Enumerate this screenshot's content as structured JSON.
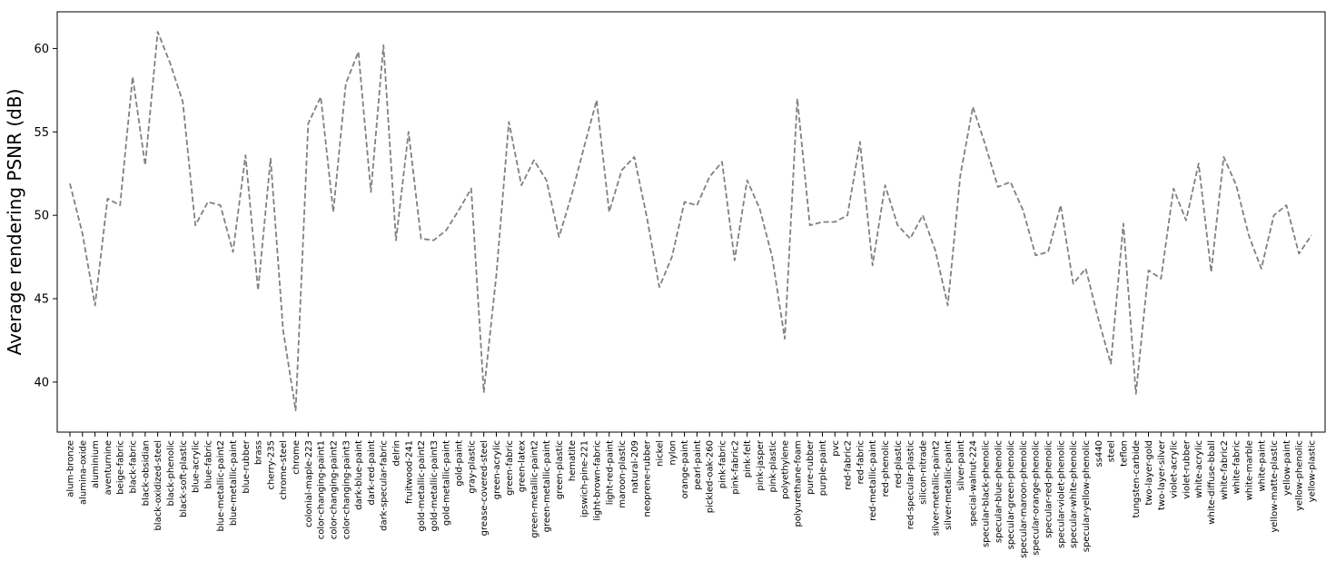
{
  "chart_data": {
    "type": "line",
    "title": "",
    "xlabel": "",
    "ylabel": "Average rendering PSNR (dB)",
    "ylim": [
      37.0,
      62.2
    ],
    "yticks": [
      40,
      45,
      50,
      55,
      60
    ],
    "grid": false,
    "legend": "none",
    "line_color": "#808080",
    "line_style": "dashed",
    "categories": [
      "alum-bronze",
      "alumina-oxide",
      "aluminium",
      "aventurnine",
      "beige-fabric",
      "black-fabric",
      "black-obsidian",
      "black-oxidized-steel",
      "black-phenolic",
      "black-soft-plastic",
      "blue-acrylic",
      "blue-fabric",
      "blue-metallic-paint2",
      "blue-metallic-paint",
      "blue-rubber",
      "brass",
      "cherry-235",
      "chrome-steel",
      "chrome",
      "colonial-maple-223",
      "color-changing-paint1",
      "color-changing-paint2",
      "color-changing-paint3",
      "dark-blue-paint",
      "dark-red-paint",
      "dark-specular-fabric",
      "delrin",
      "fruitwood-241",
      "gold-metallic-paint2",
      "gold-metallic-paint3",
      "gold-metallic-paint",
      "gold-paint",
      "gray-plastic",
      "grease-covered-steel",
      "green-acrylic",
      "green-fabric",
      "green-latex",
      "green-metallic-paint2",
      "green-metallic-paint",
      "green-plastic",
      "hematite",
      "ipswich-pine-221",
      "light-brown-fabric",
      "light-red-paint",
      "maroon-plastic",
      "natural-209",
      "neoprene-rubber",
      "nickel",
      "nylon",
      "orange-paint",
      "pearl-paint",
      "pickled-oak-260",
      "pink-fabric",
      "pink-fabric2",
      "pink-felt",
      "pink-jasper",
      "pink-plastic",
      "polyethylene",
      "polyurethane-foam",
      "pure-rubber",
      "purple-paint",
      "pvc",
      "red-fabric2",
      "red-fabric",
      "red-metallic-paint",
      "red-phenolic",
      "red-plastic",
      "red-specular-plastic",
      "silicon-nitrade",
      "silver-metallic-paint2",
      "silver-metallic-paint",
      "silver-paint",
      "special-walnut-224",
      "specular-black-phenolic",
      "specular-blue-phenolic",
      "specular-green-phenolic",
      "specular-maroon-phenolic",
      "specular-orange-phenolic",
      "specular-red-phenolic",
      "specular-violet-phenolic",
      "specular-white-phenolic",
      "specular-yellow-phenolic",
      "ss440",
      "steel",
      "teflon",
      "tungsten-carbide",
      "two-layer-gold",
      "two-layer-silver",
      "violet-acrylic",
      "violet-rubber",
      "white-acrylic",
      "white-diffuse-bball",
      "white-fabric2",
      "white-fabric",
      "white-marble",
      "white-paint",
      "yellow-matte-plastic",
      "yellow-paint",
      "yellow-phenolic",
      "yellow-plastic"
    ],
    "values": [
      51.9,
      48.9,
      44.6,
      51.0,
      50.6,
      58.3,
      53.0,
      61.0,
      59.1,
      56.8,
      49.4,
      50.8,
      50.6,
      47.8,
      53.6,
      45.5,
      53.4,
      43.1,
      38.3,
      55.5,
      57.1,
      50.2,
      57.9,
      59.8,
      51.4,
      60.2,
      48.5,
      55.0,
      48.6,
      48.5,
      49.1,
      50.3,
      51.6,
      39.4,
      46.4,
      55.6,
      51.8,
      53.3,
      52.1,
      48.7,
      51.2,
      54.1,
      56.9,
      50.2,
      52.7,
      53.5,
      49.9,
      45.7,
      47.5,
      50.8,
      50.6,
      52.3,
      53.2,
      47.3,
      52.1,
      50.4,
      47.5,
      42.6,
      57.0,
      49.4,
      49.6,
      49.6,
      50.0,
      54.4,
      47.0,
      51.8,
      49.4,
      48.6,
      50.0,
      47.9,
      44.6,
      52.4,
      56.5,
      54.2,
      51.7,
      52.0,
      50.3,
      47.6,
      47.8,
      50.6,
      45.9,
      46.8,
      43.8,
      41.1,
      49.5,
      39.3,
      46.7,
      46.2,
      51.6,
      49.7,
      53.1,
      46.6,
      53.5,
      51.8,
      48.8,
      46.8,
      50.0,
      50.6,
      47.7,
      48.8
    ]
  }
}
